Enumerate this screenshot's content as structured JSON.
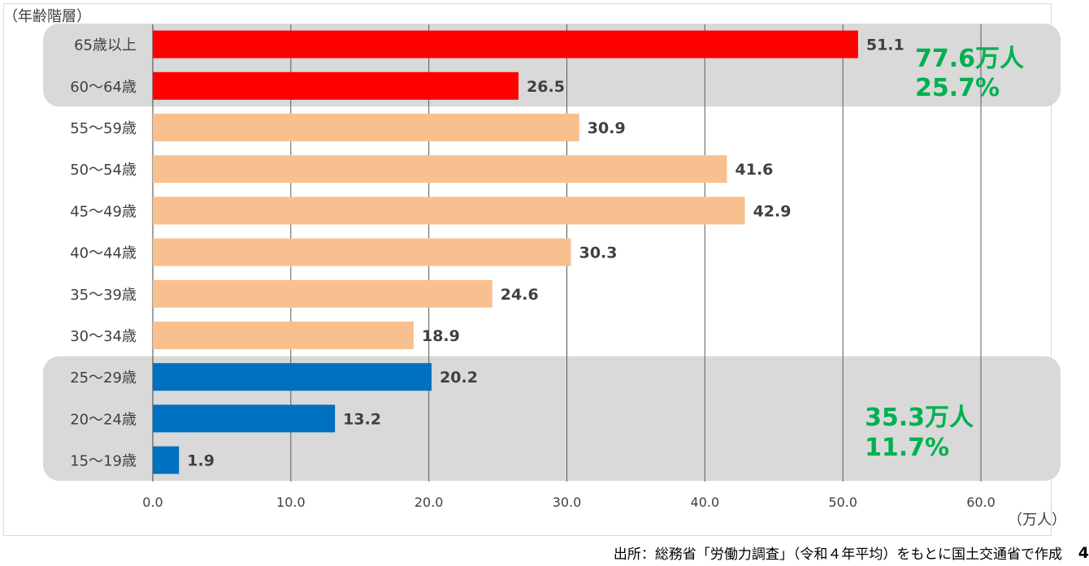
{
  "chart_data": {
    "type": "bar",
    "orientation": "horizontal",
    "y_axis_title": "（年齢階層）",
    "x_unit_label": "（万人）",
    "categories": [
      "65歳以上",
      "60～64歳",
      "55～59歳",
      "50～54歳",
      "45～49歳",
      "40～44歳",
      "35～39歳",
      "30～34歳",
      "25～29歳",
      "20～24歳",
      "15～19歳"
    ],
    "values": [
      51.1,
      26.5,
      30.9,
      41.6,
      42.9,
      30.3,
      24.6,
      18.9,
      20.2,
      13.2,
      1.9
    ],
    "value_labels": [
      "51.1",
      "26.5",
      "30.9",
      "41.6",
      "42.9",
      "30.3",
      "24.6",
      "18.9",
      "20.2",
      "13.2",
      "1.9"
    ],
    "bar_groups": [
      "older",
      "older",
      "middle",
      "middle",
      "middle",
      "middle",
      "middle",
      "middle",
      "young",
      "young",
      "young"
    ],
    "xlim": [
      0,
      60
    ],
    "xticks": [
      "0.0",
      "10.0",
      "20.0",
      "30.0",
      "40.0",
      "50.0",
      "60.0"
    ],
    "grid": true,
    "colors": {
      "older": "#ff0000",
      "middle": "#f8c08f",
      "young": "#0070c0",
      "highlight_box": "#d9d9d9",
      "annotation": "#00b050",
      "gridline": "#595959"
    },
    "annotations": [
      {
        "group": "older",
        "line1": "77.6万人",
        "line2": "25.7%"
      },
      {
        "group": "young",
        "line1": "35.3万人",
        "line2": "11.7%"
      }
    ]
  },
  "footer": {
    "source": "出所：総務省「労働力調査」（令和４年平均）をもとに国土交通省で作成",
    "page_number": "4"
  }
}
